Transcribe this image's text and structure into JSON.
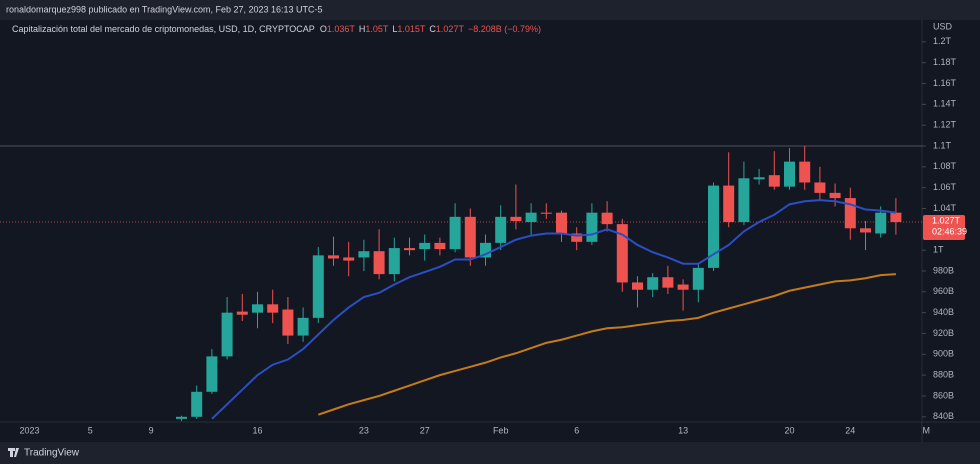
{
  "header": {
    "publisher_line": "ronaldomarquez998 publicado en TradingView.com, Feb 27, 2023 16:13 UTC-5",
    "brand": "TradingView"
  },
  "chart_data": {
    "type": "candlestick",
    "legend": {
      "symbol": "Capitalización total del mercado de criptomonedas, USD, 1D, CRYPTOCAP",
      "ohlc": [
        [
          "O",
          "1.036T"
        ],
        [
          "H",
          "1.05T"
        ],
        [
          "L",
          "1.015T"
        ],
        [
          "C",
          "1.027T"
        ]
      ],
      "change": "−8.208B (−0.79%)"
    },
    "currency": "USD",
    "categories": [
      "2023",
      null,
      null,
      null,
      "5",
      null,
      null,
      null,
      "9",
      null,
      null,
      null,
      null,
      null,
      null,
      "16",
      null,
      null,
      null,
      null,
      null,
      null,
      "23",
      null,
      null,
      null,
      "27",
      null,
      null,
      null,
      null,
      "Feb",
      null,
      null,
      null,
      null,
      "6",
      null,
      null,
      null,
      null,
      null,
      null,
      "13",
      null,
      null,
      null,
      null,
      null,
      null,
      "20",
      null,
      null,
      null,
      "24",
      null,
      null,
      null,
      null,
      "M"
    ],
    "open": [
      null,
      null,
      null,
      null,
      null,
      null,
      null,
      null,
      null,
      null,
      838,
      840,
      864,
      898,
      941,
      940,
      948,
      943,
      918,
      935,
      995,
      993,
      993,
      999,
      977,
      1002,
      1001,
      1007,
      1001,
      1032,
      993,
      1007,
      1032,
      1027,
      1036,
      1036,
      1016,
      1008,
      1036,
      1025,
      969,
      962,
      974,
      967,
      962,
      983,
      1062,
      1027,
      1068,
      1072,
      1061,
      1085,
      1065,
      1055,
      1050,
      1021,
      1016,
      1036,
      null,
      null
    ],
    "high": [
      null,
      null,
      null,
      null,
      null,
      null,
      null,
      null,
      null,
      null,
      841,
      870,
      905,
      955,
      958,
      960,
      962,
      955,
      945,
      1003,
      1013,
      1008,
      1010,
      1020,
      1012,
      1012,
      1015,
      1012,
      1045,
      1040,
      1015,
      1043,
      1063,
      1045,
      1045,
      1038,
      1022,
      1045,
      1047,
      1030,
      975,
      978,
      985,
      972,
      988,
      1065,
      1094,
      1085,
      1078,
      1095,
      1098,
      1100,
      1080,
      1064,
      1060,
      1028,
      1042,
      1050,
      null,
      null
    ],
    "low": [
      null,
      null,
      null,
      null,
      null,
      null,
      null,
      null,
      null,
      null,
      836,
      838,
      862,
      895,
      932,
      925,
      930,
      910,
      912,
      930,
      985,
      975,
      980,
      972,
      970,
      995,
      990,
      995,
      998,
      985,
      985,
      1000,
      1020,
      1015,
      1030,
      1008,
      1000,
      1005,
      1018,
      960,
      945,
      955,
      958,
      942,
      950,
      980,
      1022,
      1024,
      1063,
      1058,
      1058,
      1058,
      1048,
      1042,
      1010,
      1000,
      1012,
      1015,
      null,
      null
    ],
    "close": [
      null,
      null,
      null,
      null,
      null,
      null,
      null,
      null,
      null,
      null,
      840,
      864,
      898,
      940,
      938,
      948,
      940,
      918,
      935,
      995,
      992,
      990,
      999,
      977,
      1002,
      1000,
      1007,
      1001,
      1032,
      993,
      1007,
      1032,
      1028,
      1036,
      1035,
      1016,
      1008,
      1036,
      1025,
      969,
      962,
      974,
      964,
      962,
      983,
      1062,
      1027,
      1069,
      1070,
      1061,
      1085,
      1065,
      1055,
      1050,
      1021,
      1017,
      1036,
      1027,
      null,
      null
    ],
    "up_color": "#26a69a",
    "down_color": "#ef5350",
    "lines": [
      {
        "color": "#2a4fc4",
        "values": [
          null,
          null,
          null,
          null,
          null,
          null,
          null,
          null,
          null,
          null,
          null,
          null,
          838,
          852,
          866,
          880,
          890,
          895,
          905,
          919,
          933,
          945,
          955,
          959,
          967,
          974,
          979,
          984,
          991,
          991,
          996,
          1003,
          1010,
          1014,
          1016,
          1016,
          1014,
          1015,
          1020,
          1015,
          1005,
          998,
          993,
          987,
          987,
          996,
          1005,
          1018,
          1027,
          1034,
          1044,
          1047,
          1048,
          1047,
          1044,
          1039,
          1038,
          1036,
          null,
          null
        ]
      },
      {
        "color": "#c77a1c",
        "values": [
          null,
          null,
          null,
          null,
          null,
          null,
          null,
          null,
          null,
          null,
          null,
          null,
          null,
          null,
          null,
          null,
          null,
          null,
          null,
          842,
          847,
          852,
          856,
          860,
          865,
          870,
          875,
          880,
          884,
          888,
          892,
          897,
          901,
          906,
          911,
          914,
          918,
          922,
          925,
          926,
          928,
          930,
          932,
          933,
          935,
          940,
          944,
          948,
          952,
          956,
          961,
          964,
          967,
          970,
          971,
          973,
          976,
          977,
          null,
          null
        ]
      }
    ],
    "horizontal_line": 1100,
    "last_price": 1027,
    "last_price_label": "1.027T",
    "countdown": "02:46:39",
    "ylim": [
      835,
      1221
    ],
    "yticks": [
      {
        "value": 1200,
        "label": "1.2T"
      },
      {
        "value": 1180,
        "label": "1.18T"
      },
      {
        "value": 1160,
        "label": "1.16T"
      },
      {
        "value": 1140,
        "label": "1.14T"
      },
      {
        "value": 1120,
        "label": "1.12T"
      },
      {
        "value": 1100,
        "label": "1.1T"
      },
      {
        "value": 1080,
        "label": "1.08T"
      },
      {
        "value": 1060,
        "label": "1.06T"
      },
      {
        "value": 1040,
        "label": "1.04T"
      },
      {
        "value": 1000,
        "label": "1T"
      },
      {
        "value": 980,
        "label": "980B"
      },
      {
        "value": 960,
        "label": "960B"
      },
      {
        "value": 940,
        "label": "940B"
      },
      {
        "value": 920,
        "label": "920B"
      },
      {
        "value": 900,
        "label": "900B"
      },
      {
        "value": 880,
        "label": "880B"
      },
      {
        "value": 860,
        "label": "860B"
      },
      {
        "value": 840,
        "label": "840B"
      }
    ],
    "grid": false
  }
}
